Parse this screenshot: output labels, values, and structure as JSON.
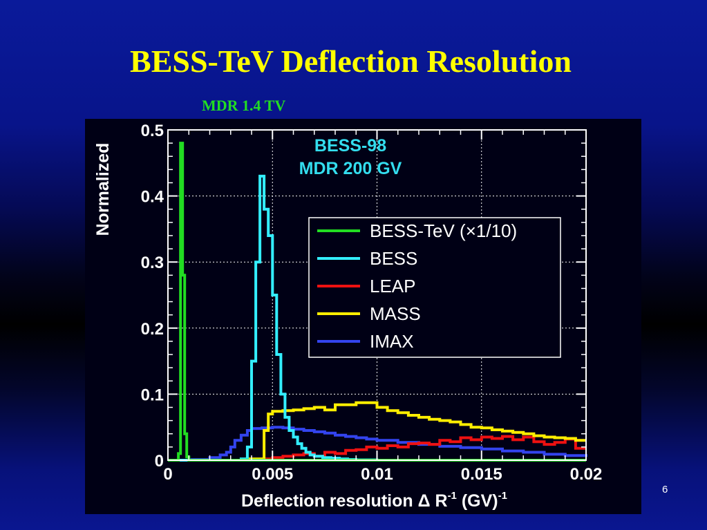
{
  "slide": {
    "title": "BESS-TeV Deflection Resolution",
    "subtitle": "MDR 1.4 TV",
    "page_number": "6"
  },
  "chart_data": {
    "type": "line",
    "step": true,
    "xlabel": "Deflection resolution  Δ R",
    "xlabel_sup": "-1",
    "xlabel_unit": " (GV)",
    "xlabel_unit_sup": "-1",
    "ylabel": "Normalized",
    "xlim": [
      0,
      0.02
    ],
    "ylim": [
      0,
      0.5
    ],
    "x_ticks": [
      0,
      0.005,
      0.01,
      0.015,
      0.02
    ],
    "x_tick_labels": [
      "0",
      "0.005",
      "0.01",
      "0.015",
      "0.02"
    ],
    "y_ticks": [
      0,
      0.1,
      0.2,
      0.3,
      0.4,
      0.5
    ],
    "y_tick_labels": [
      "0",
      "0.1",
      "0.2",
      "0.3",
      "0.4",
      "0.5"
    ],
    "grid": true,
    "legend_position": "upper-right",
    "annotations": [
      "BESS-98",
      "MDR 200 GV"
    ],
    "series": [
      {
        "name": "BESS-TeV (×1/10)",
        "color": "#22dd22",
        "x": [
          0,
          0.0005,
          0.0006,
          0.0007,
          0.0008,
          0.0009,
          0.001,
          0.02
        ],
        "y": [
          0,
          0.01,
          0.48,
          0.28,
          0.04,
          0.005,
          0,
          0
        ]
      },
      {
        "name": "BESS",
        "color": "#33eeff",
        "x": [
          0,
          0.0035,
          0.0038,
          0.004,
          0.0042,
          0.0044,
          0.0046,
          0.0048,
          0.005,
          0.0052,
          0.0054,
          0.0056,
          0.0058,
          0.006,
          0.0062,
          0.0064,
          0.0066,
          0.0068,
          0.007,
          0.0074,
          0.0078,
          0.0082,
          0.0086,
          0.009,
          0.01,
          0.02
        ],
        "y": [
          0,
          0.002,
          0.02,
          0.15,
          0.3,
          0.43,
          0.38,
          0.34,
          0.25,
          0.16,
          0.1,
          0.065,
          0.045,
          0.035,
          0.025,
          0.018,
          0.012,
          0.008,
          0.006,
          0.004,
          0.003,
          0.002,
          0.001,
          0.0005,
          0,
          0
        ]
      },
      {
        "name": "LEAP",
        "color": "#ee1111",
        "x": [
          0,
          0.0045,
          0.005,
          0.0055,
          0.006,
          0.0065,
          0.007,
          0.0075,
          0.008,
          0.0085,
          0.009,
          0.0095,
          0.01,
          0.0105,
          0.011,
          0.0115,
          0.012,
          0.0125,
          0.013,
          0.0135,
          0.014,
          0.0145,
          0.015,
          0.0155,
          0.016,
          0.0165,
          0.017,
          0.0175,
          0.018,
          0.0185,
          0.019,
          0.0195,
          0.02
        ],
        "y": [
          0,
          0.002,
          0.004,
          0.006,
          0.008,
          0.01,
          0.006,
          0.012,
          0.01,
          0.015,
          0.016,
          0.02,
          0.018,
          0.022,
          0.02,
          0.025,
          0.026,
          0.024,
          0.03,
          0.028,
          0.034,
          0.031,
          0.035,
          0.033,
          0.036,
          0.031,
          0.035,
          0.028,
          0.024,
          0.027,
          0.032,
          0.018,
          0.018
        ]
      },
      {
        "name": "MASS",
        "color": "#ffee00",
        "x": [
          0,
          0.0038,
          0.0046,
          0.0048,
          0.005,
          0.0055,
          0.006,
          0.0065,
          0.007,
          0.0075,
          0.008,
          0.009,
          0.01,
          0.0105,
          0.011,
          0.0115,
          0.012,
          0.0125,
          0.013,
          0.0135,
          0.014,
          0.0145,
          0.015,
          0.0155,
          0.016,
          0.0165,
          0.017,
          0.0175,
          0.018,
          0.0185,
          0.019,
          0.0195,
          0.02
        ],
        "y": [
          0,
          0.002,
          0.045,
          0.07,
          0.074,
          0.075,
          0.076,
          0.078,
          0.08,
          0.076,
          0.084,
          0.087,
          0.08,
          0.075,
          0.072,
          0.068,
          0.065,
          0.062,
          0.06,
          0.058,
          0.054,
          0.05,
          0.049,
          0.046,
          0.044,
          0.042,
          0.04,
          0.037,
          0.035,
          0.034,
          0.033,
          0.03,
          0.03
        ]
      },
      {
        "name": "IMAX",
        "color": "#3344ee",
        "x": [
          0,
          0.001,
          0.002,
          0.0025,
          0.0028,
          0.003,
          0.0032,
          0.0035,
          0.0038,
          0.004,
          0.0045,
          0.005,
          0.0055,
          0.006,
          0.0065,
          0.007,
          0.0075,
          0.008,
          0.0085,
          0.009,
          0.0095,
          0.01,
          0.011,
          0.012,
          0.013,
          0.014,
          0.015,
          0.016,
          0.017,
          0.018,
          0.019,
          0.02
        ],
        "y": [
          0,
          0.001,
          0.004,
          0.008,
          0.012,
          0.02,
          0.03,
          0.038,
          0.045,
          0.048,
          0.049,
          0.05,
          0.049,
          0.047,
          0.045,
          0.043,
          0.041,
          0.038,
          0.036,
          0.034,
          0.032,
          0.03,
          0.027,
          0.024,
          0.021,
          0.019,
          0.017,
          0.014,
          0.012,
          0.009,
          0.007,
          0.005
        ]
      }
    ]
  }
}
